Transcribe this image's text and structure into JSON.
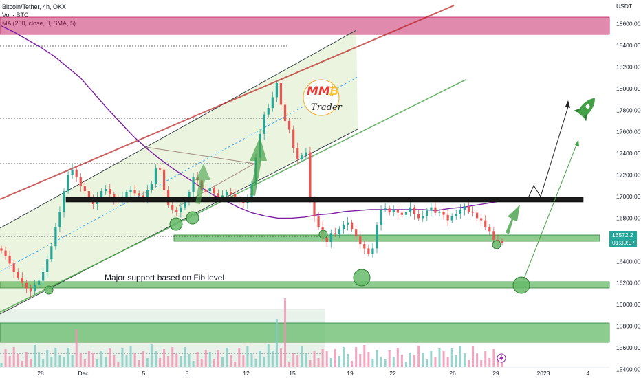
{
  "header": {
    "symbol": "Bitcoin/Tether, 4h, OKX",
    "volume": "Vol · BTC",
    "ma": "MA (200, close, 0, SMA, 5)"
  },
  "price_axis": {
    "unit": "USDT",
    "ticks": [
      "18600.00",
      "18400.00",
      "18200.00",
      "18000.00",
      "17800.00",
      "17600.00",
      "17400.00",
      "17200.00",
      "17000.00",
      "16800.00",
      "16400.00",
      "16200.00",
      "16000.00",
      "15800.00",
      "15600.00",
      "15400.00"
    ],
    "last_price": "16572.2",
    "countdown": "01:39:07"
  },
  "annotation": "Major support based on Fib level",
  "logo": {
    "mark": "MM",
    "coin": "₿",
    "word": "Trader"
  },
  "colors": {
    "up": "#26a69a",
    "down": "#ef5350",
    "ma": "#7b1fa2",
    "zone_green": "#66bb6a",
    "zone_red": "#c2185b",
    "resistance": "#1a1a1a"
  },
  "chart_data": {
    "type": "candlestick",
    "title": "Bitcoin/Tether, 4h, OKX",
    "ylabel": "USDT",
    "ylim": [
      15320,
      18820
    ],
    "x_tick_labels": [
      "28",
      "Dec",
      "5",
      "8",
      "12",
      "15",
      "19",
      "22",
      "26",
      "29",
      "2023",
      "4"
    ],
    "price": [
      16500,
      16450,
      16380,
      16300,
      16250,
      16200,
      16150,
      16120,
      16180,
      16220,
      16300,
      16420,
      16540,
      16720,
      16860,
      17050,
      17200,
      17250,
      17180,
      17100,
      17050,
      16980,
      16930,
      16990,
      17050,
      17070,
      17020,
      16980,
      16960,
      16990,
      17040,
      17060,
      17030,
      17010,
      16990,
      17060,
      17120,
      17260,
      17250,
      17060,
      16920,
      16880,
      16860,
      16900,
      16950,
      17040,
      17180,
      17150,
      17060,
      17050,
      17080,
      17030,
      16990,
      17010,
      17040,
      17020,
      16990,
      16960,
      16940,
      16970,
      17120,
      17360,
      17580,
      17760,
      17820,
      17920,
      18050,
      17850,
      17700,
      17620,
      17450,
      17350,
      17380,
      17410,
      16980,
      16820,
      16720,
      16620,
      16580,
      16660,
      16650,
      16700,
      16740,
      16760,
      16700,
      16630,
      16560,
      16520,
      16470,
      16520,
      16740,
      16880,
      16890,
      16860,
      16880,
      16850,
      16830,
      16860,
      16900,
      16840,
      16800,
      16820,
      16870,
      16900,
      16850,
      16860,
      16830,
      16780,
      16820,
      16840,
      16880,
      16910,
      16860,
      16850,
      16800,
      16780,
      16720,
      16680,
      16600,
      16585,
      16572
    ],
    "ma200": [
      18580,
      18520,
      18450,
      18380,
      18300,
      18200,
      18100,
      17960,
      17820,
      17690,
      17560,
      17450,
      17350,
      17260,
      17180,
      17100,
      17020,
      16960,
      16900,
      16850,
      16820,
      16800,
      16800,
      16810,
      16830,
      16840,
      16860,
      16870,
      16880,
      16880,
      16880,
      16880,
      16880,
      16870,
      16890,
      16900,
      16920,
      16940,
      16960
    ],
    "volume_bar_count": 121,
    "levels": {
      "resistance": 16920,
      "support_zone": [
        16530,
        16590
      ],
      "fib_support_zone": [
        16080,
        16130
      ],
      "supply_zone": [
        18490,
        18660
      ],
      "demand_zone": [
        15560,
        15720
      ]
    }
  }
}
